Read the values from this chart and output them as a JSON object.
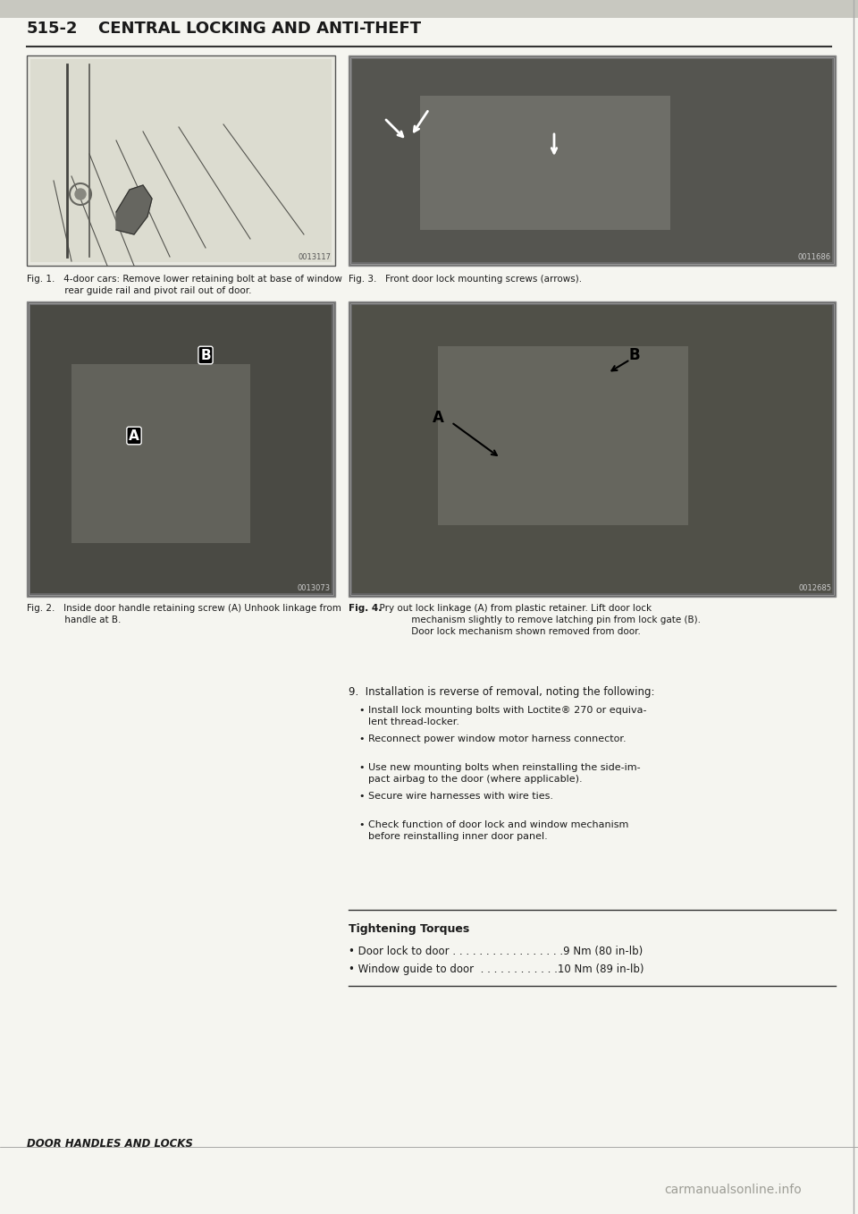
{
  "page_number": "515-2",
  "title": "Central Locking and Anti-Theft",
  "background_color": "#f5f5f0",
  "text_color": "#1a1a1a",
  "fig1_caption": "Fig. 1.   4-door cars: Remove lower retaining bolt at base of window\n             rear guide rail and pivot rail out of door.",
  "fig2_caption": "Fig. 2.   Inside door handle retaining screw (A) Unhook linkage from\n             handle at B.",
  "fig3_caption": "Fig. 3.   Front door lock mounting screws (arrows).",
  "fig4_caption_bold": "Fig. 4.",
  "fig4_caption_text": "  Pry out lock linkage (A) from plastic retainer. Lift door lock\n             mechanism slightly to remove latching pin from lock gate (B).\n             Door lock mechanism shown removed from door.",
  "fig1_code": "0013117",
  "fig2_code": "0013073",
  "fig3_code": "0011686",
  "fig4_code": "0012685",
  "step9_header": "9.  Installation is reverse of removal, noting the following:",
  "bullet_points": [
    "Install lock mounting bolts with Loctite® 270 or equiva-\n        lent thread-locker.",
    "Reconnect power window motor harness connector.",
    "Use new mounting bolts when reinstalling the side-im-\n        pact airbag to the door (where applicable).",
    "Secure wire harnesses with wire ties.",
    "Check function of door lock and window mechanism\n        before reinstalling inner door panel."
  ],
  "tightening_header": "Tightening Torques",
  "torque1": "• Door lock to door . . . . . . . . . . . . . . . . .9 Nm (80 in-lb)",
  "torque2": "• Window guide to door  . . . . . . . . . . . .10 Nm (89 in-lb)",
  "footer": "DOOR HANDLES AND LOCKS",
  "watermark": "carmanualsonline.info"
}
